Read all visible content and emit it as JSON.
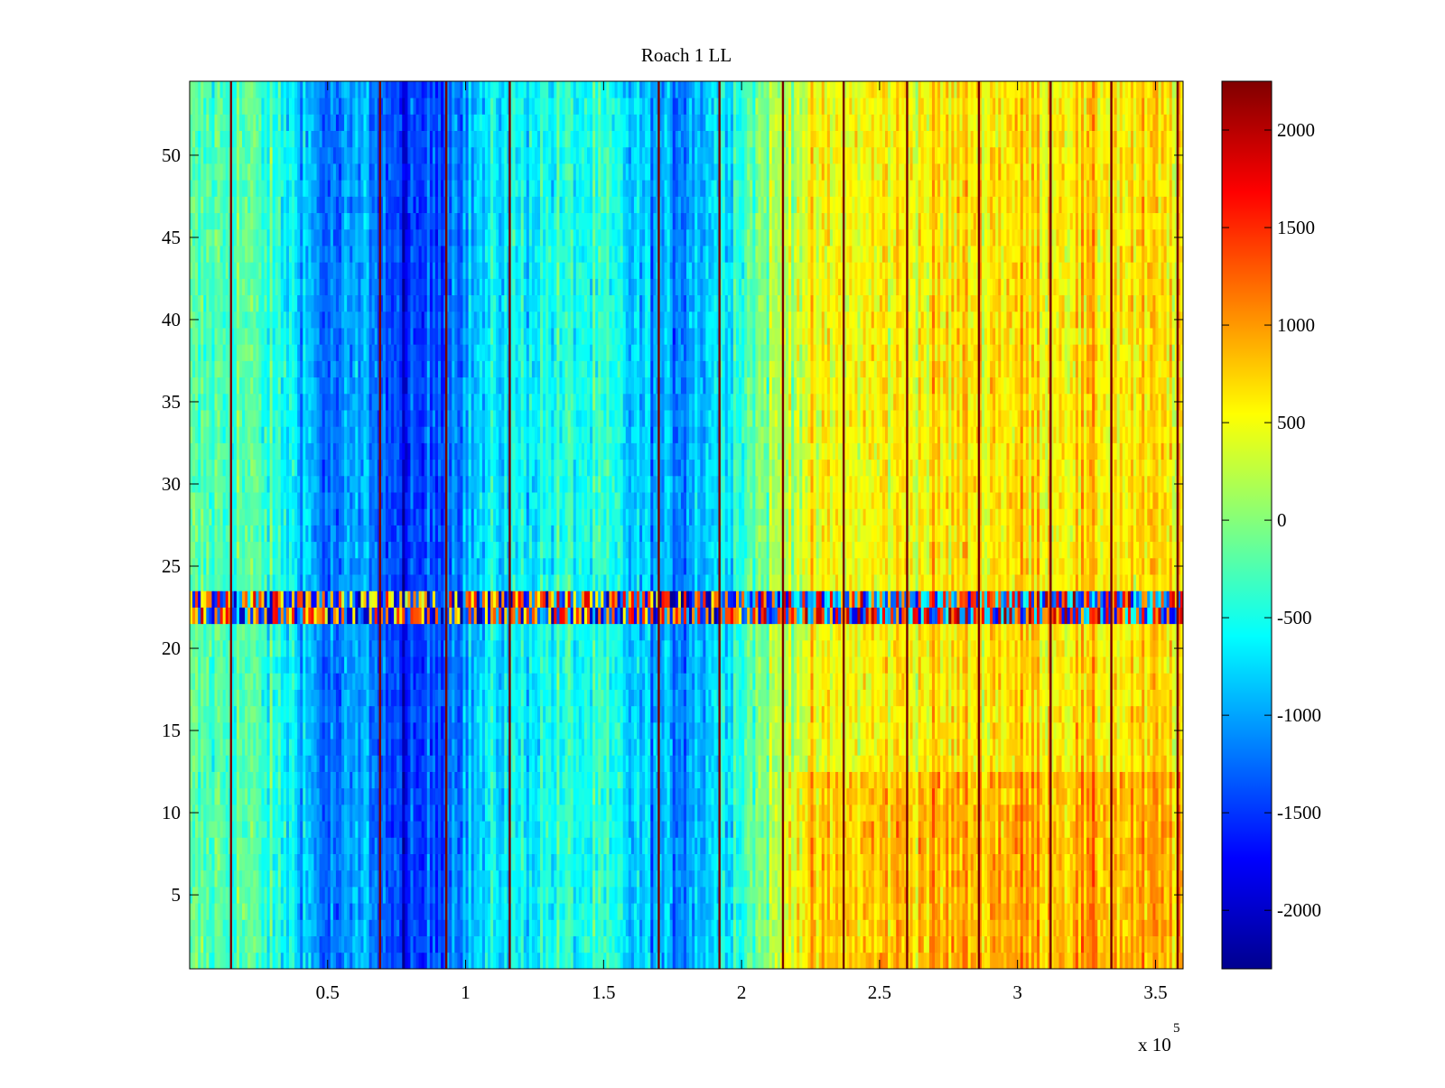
{
  "chart_data": {
    "type": "heatmap",
    "title": "Roach 1 LL",
    "xlabel": "",
    "ylabel": "",
    "x_multiplier_label": "x 10",
    "x_multiplier_exponent": "5",
    "xlim": [
      0,
      3.6
    ],
    "ylim": [
      0.5,
      54.5
    ],
    "xticks": [
      0.5,
      1,
      1.5,
      2,
      2.5,
      3,
      3.5
    ],
    "xtick_labels": [
      "0.5",
      "1",
      "1.5",
      "2",
      "2.5",
      "3",
      "3.5"
    ],
    "yticks": [
      5,
      10,
      15,
      20,
      25,
      30,
      35,
      40,
      45,
      50
    ],
    "ytick_labels": [
      "5",
      "10",
      "15",
      "20",
      "25",
      "30",
      "35",
      "40",
      "45",
      "50"
    ],
    "colormap": "jet",
    "clim": [
      -2300,
      2250
    ],
    "colorbar_ticks": [
      2000,
      1500,
      1000,
      500,
      0,
      -500,
      -1000,
      -1500,
      -2000
    ],
    "colorbar_tick_labels": [
      "2000",
      "1500",
      "1000",
      "500",
      "0",
      "-500",
      "-1000",
      "-1500",
      "-2000"
    ],
    "n_rows": 54,
    "n_cols": 360,
    "column_profile": [
      {
        "x": 0.0,
        "value": -300
      },
      {
        "x": 0.2,
        "value": -200
      },
      {
        "x": 0.4,
        "value": -700
      },
      {
        "x": 0.5,
        "value": -1300
      },
      {
        "x": 0.65,
        "value": -1000
      },
      {
        "x": 0.78,
        "value": -1700
      },
      {
        "x": 0.95,
        "value": -1100
      },
      {
        "x": 1.1,
        "value": -700
      },
      {
        "x": 1.3,
        "value": -500
      },
      {
        "x": 1.5,
        "value": -500
      },
      {
        "x": 1.6,
        "value": -800
      },
      {
        "x": 1.75,
        "value": -1100
      },
      {
        "x": 1.9,
        "value": -700
      },
      {
        "x": 2.05,
        "value": -100
      },
      {
        "x": 2.2,
        "value": 400
      },
      {
        "x": 2.5,
        "value": 550
      },
      {
        "x": 3.0,
        "value": 700
      },
      {
        "x": 3.6,
        "value": 600
      }
    ],
    "noisy_band_rows": [
      22,
      23
    ],
    "low_row_boost": {
      "rows_below": 12,
      "x_from": 2.15,
      "value": 250
    },
    "dark_column_lines_x": [
      0.15,
      0.69,
      0.93,
      1.16,
      1.7,
      1.92,
      2.15,
      2.37,
      2.6,
      2.86,
      3.12,
      3.34,
      3.58
    ]
  }
}
